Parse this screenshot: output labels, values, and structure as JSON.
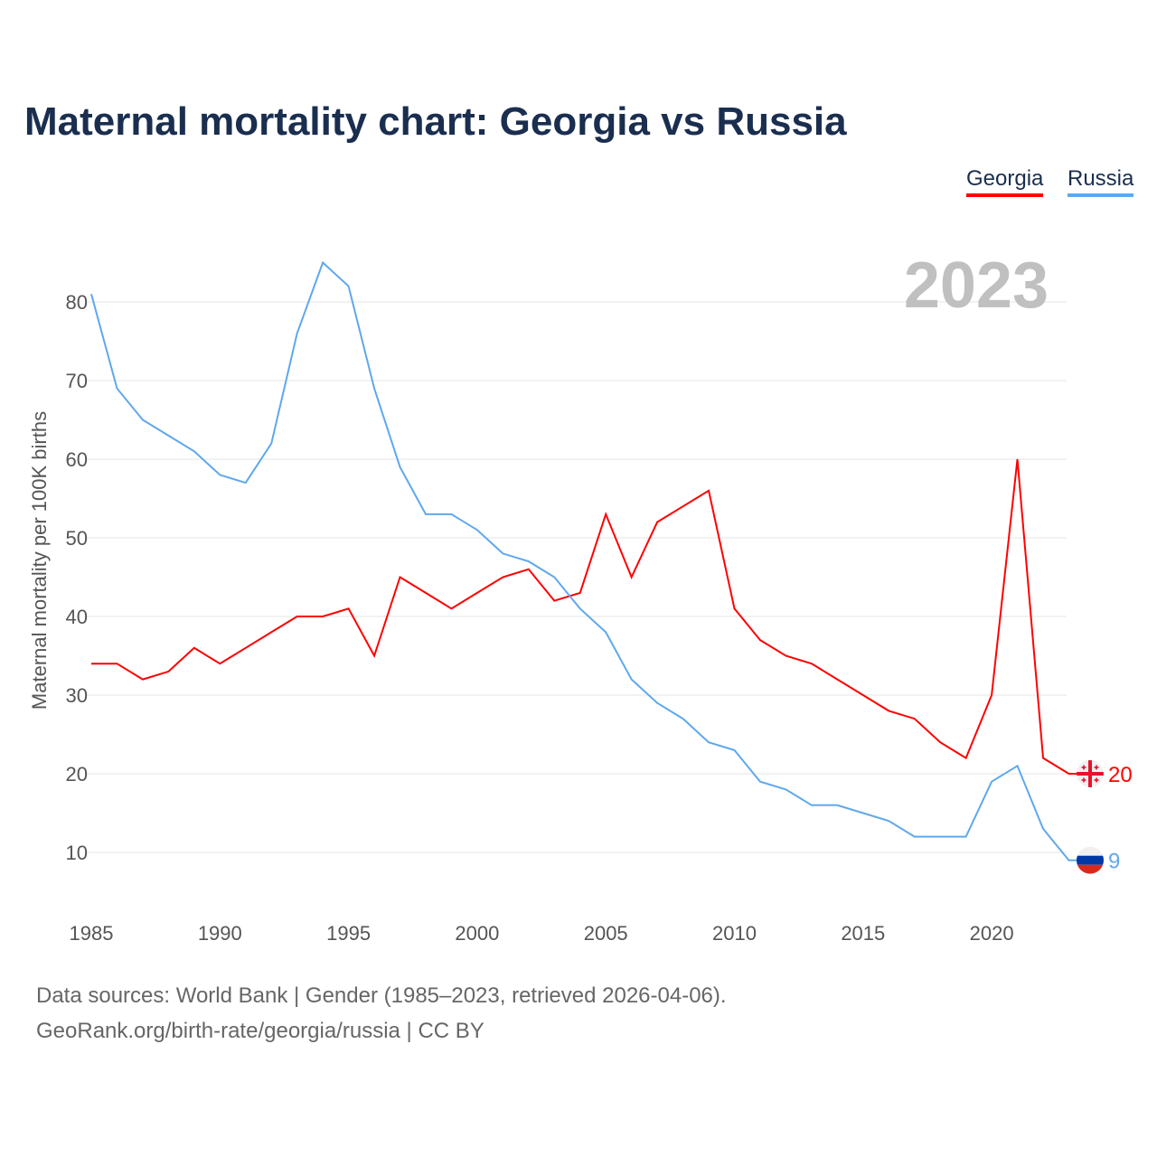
{
  "title": "Maternal mortality chart: Georgia vs Russia",
  "legend": {
    "georgia": "Georgia",
    "russia": "Russia"
  },
  "year_label": "2023",
  "footer": {
    "line1": "Data sources: World Bank | Gender (1985–2023, retrieved 2026-04-06).",
    "line2": "GeoRank.org/birth-rate/georgia/russia | CC BY"
  },
  "chart_data": {
    "type": "line",
    "title": "Maternal mortality chart: Georgia vs Russia",
    "xlabel": "",
    "ylabel": "Maternal mortality per 100K births",
    "xlim": [
      1985,
      2023
    ],
    "ylim": [
      0,
      85
    ],
    "xticks": [
      1985,
      1990,
      1995,
      2000,
      2005,
      2010,
      2015,
      2020
    ],
    "yticks": [
      10,
      20,
      30,
      40,
      50,
      60,
      70,
      80
    ],
    "grid": true,
    "legend_position": "top-right",
    "x": [
      1985,
      1986,
      1987,
      1988,
      1989,
      1990,
      1991,
      1992,
      1993,
      1994,
      1995,
      1996,
      1997,
      1998,
      1999,
      2000,
      2001,
      2002,
      2003,
      2004,
      2005,
      2006,
      2007,
      2008,
      2009,
      2010,
      2011,
      2012,
      2013,
      2014,
      2015,
      2016,
      2017,
      2018,
      2019,
      2020,
      2021,
      2022,
      2023
    ],
    "series": [
      {
        "name": "Georgia",
        "color": "#ff0000",
        "end_label": "20",
        "values": [
          34,
          34,
          32,
          33,
          36,
          34,
          36,
          38,
          40,
          40,
          41,
          35,
          45,
          43,
          41,
          43,
          45,
          46,
          42,
          43,
          53,
          45,
          52,
          54,
          56,
          41,
          37,
          35,
          34,
          32,
          30,
          28,
          27,
          24,
          22,
          30,
          60,
          22,
          20
        ]
      },
      {
        "name": "Russia",
        "color": "#5fa8ec",
        "end_label": "9",
        "values": [
          81,
          69,
          65,
          63,
          61,
          58,
          57,
          62,
          76,
          85,
          82,
          69,
          59,
          53,
          53,
          51,
          48,
          47,
          45,
          41,
          38,
          32,
          29,
          27,
          24,
          23,
          19,
          18,
          16,
          16,
          15,
          14,
          12,
          12,
          12,
          19,
          21,
          13,
          9
        ]
      }
    ]
  }
}
